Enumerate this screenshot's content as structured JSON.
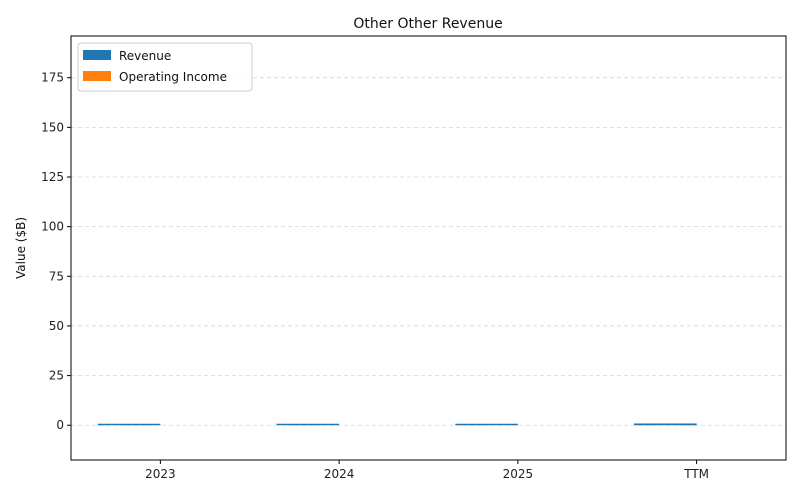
{
  "chart_data": {
    "type": "bar",
    "title": "Other Other Revenue",
    "xlabel": "",
    "ylabel": "Value ($B)",
    "categories": [
      "2023",
      "2024",
      "2025",
      "TTM"
    ],
    "series": [
      {
        "name": "Revenue",
        "color": "#1f77b4",
        "values": [
          0.4,
          0.4,
          0.4,
          0.9
        ]
      },
      {
        "name": "Operating Income",
        "color": "#ff7f0e",
        "values": [
          0,
          0,
          0,
          0
        ]
      }
    ],
    "ylim": [
      -17.5,
      196
    ],
    "yticks": [
      0,
      25,
      50,
      75,
      100,
      125,
      150,
      175
    ],
    "grid": true,
    "legend": "top-left"
  }
}
